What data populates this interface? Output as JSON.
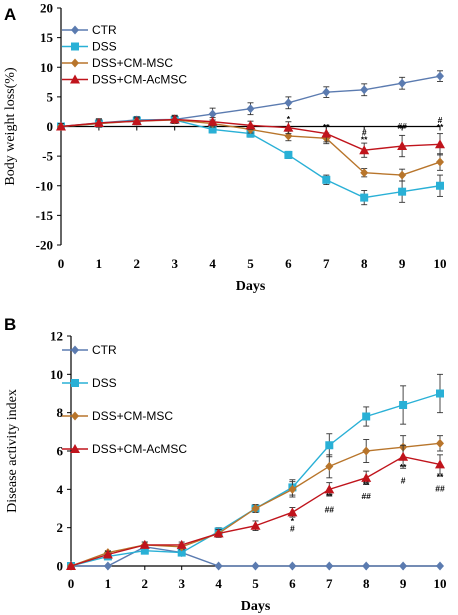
{
  "chart_data": [
    {
      "panel": "A",
      "type": "line",
      "x": [
        0,
        1,
        2,
        3,
        4,
        5,
        6,
        7,
        8,
        9,
        10
      ],
      "xlabel": "Days",
      "ylabel": "Body weight loss(%)",
      "ylim": [
        -20,
        20
      ],
      "yticks": [
        -20,
        -15,
        -10,
        -5,
        0,
        5,
        10,
        15,
        20
      ],
      "legend_position": "top-left",
      "series": [
        {
          "name": "CTR",
          "color": "#5b7bb0",
          "marker": "diamond",
          "values": [
            0,
            0.6,
            1.1,
            1.2,
            2.1,
            3.0,
            4.0,
            5.8,
            6.2,
            7.3,
            8.5
          ],
          "errors": [
            0.5,
            0.7,
            0.6,
            0.7,
            1.0,
            1.0,
            1.0,
            0.9,
            1.0,
            1.0,
            0.9
          ]
        },
        {
          "name": "DSS",
          "color": "#29b0d6",
          "marker": "square",
          "values": [
            0,
            0.5,
            1.0,
            1.1,
            -0.5,
            -1.2,
            -4.8,
            -9.0,
            -12.0,
            -11.0,
            -10.0
          ],
          "errors": [
            0.5,
            0.6,
            0.6,
            0.6,
            0.6,
            0.6,
            0.6,
            0.8,
            1.2,
            1.8,
            1.8
          ]
        },
        {
          "name": "DSS+CM-MSC",
          "color": "#b8752b",
          "marker": "diamond",
          "values": [
            0,
            0.5,
            0.9,
            1.1,
            0.5,
            -0.5,
            -1.6,
            -2.0,
            -7.8,
            -8.2,
            -6.0
          ],
          "errors": [
            0.5,
            0.6,
            0.5,
            0.6,
            0.6,
            0.6,
            0.8,
            0.9,
            0.7,
            1.0,
            1.4
          ]
        },
        {
          "name": "DSS+CM-AcMSC",
          "color": "#c0141c",
          "marker": "triangle",
          "values": [
            0,
            0.6,
            0.9,
            1.2,
            0.8,
            0.2,
            -0.2,
            -1.2,
            -4.0,
            -3.3,
            -3.0
          ],
          "errors": [
            0.5,
            0.7,
            0.6,
            0.6,
            0.7,
            0.7,
            1.0,
            1.4,
            1.2,
            1.8,
            1.8
          ]
        }
      ],
      "annotations": [
        {
          "x": 6,
          "y": 0.8,
          "text": "*"
        },
        {
          "x": 7,
          "y": -0.6,
          "text": "**"
        },
        {
          "x": 8,
          "y": -1.5,
          "text": "#"
        },
        {
          "x": 8,
          "y": -2.7,
          "text": "**"
        },
        {
          "x": 9,
          "y": -0.4,
          "text": "##"
        },
        {
          "x": 9,
          "y": -0.8,
          "text": "**"
        },
        {
          "x": 10,
          "y": 0.6,
          "text": "#"
        },
        {
          "x": 10,
          "y": -0.6,
          "text": "**"
        }
      ]
    },
    {
      "panel": "B",
      "type": "line",
      "x": [
        0,
        1,
        2,
        3,
        4,
        5,
        6,
        7,
        8,
        9,
        10
      ],
      "xlabel": "Days",
      "ylabel": "Disease activity index",
      "ylim": [
        0,
        12
      ],
      "yticks": [
        0,
        2,
        4,
        6,
        8,
        10,
        12
      ],
      "legend_position": "top-left",
      "series": [
        {
          "name": "CTR",
          "color": "#5b7bb0",
          "marker": "diamond",
          "values": [
            0,
            0,
            1.0,
            0.7,
            0,
            0,
            0,
            0,
            0,
            0,
            0
          ],
          "errors": [
            0,
            0,
            0,
            0,
            0,
            0,
            0,
            0,
            0,
            0,
            0
          ]
        },
        {
          "name": "DSS",
          "color": "#29b0d6",
          "marker": "square",
          "values": [
            0,
            0.5,
            0.8,
            0.7,
            1.8,
            3.0,
            4.1,
            6.3,
            7.8,
            8.4,
            9.0
          ],
          "errors": [
            0,
            0.1,
            0.15,
            0.15,
            0.2,
            0.2,
            0.4,
            0.6,
            0.5,
            1.0,
            1.0
          ]
        },
        {
          "name": "DSS+CM-MSC",
          "color": "#b8752b",
          "marker": "diamond",
          "values": [
            0,
            0.7,
            1.1,
            1.0,
            1.7,
            3.0,
            4.0,
            5.2,
            6.0,
            6.2,
            6.4
          ],
          "errors": [
            0,
            0.1,
            0.15,
            0.15,
            0.2,
            0.2,
            0.4,
            0.6,
            0.6,
            0.6,
            0.4
          ]
        },
        {
          "name": "DSS+CM-AcMSC",
          "color": "#c0141c",
          "marker": "triangle",
          "values": [
            0,
            0.6,
            1.1,
            1.1,
            1.7,
            2.1,
            2.8,
            4.0,
            4.6,
            5.7,
            5.3
          ],
          "errors": [
            0,
            0.15,
            0.15,
            0.15,
            0.2,
            0.25,
            0.25,
            0.35,
            0.35,
            0.6,
            0.5
          ]
        }
      ],
      "annotations": [
        {
          "x": 6,
          "y": 2.2,
          "text": "*"
        },
        {
          "x": 6,
          "y": 1.8,
          "text": "#"
        },
        {
          "x": 7,
          "y": 3.5,
          "text": "**"
        },
        {
          "x": 7,
          "y": 2.8,
          "text": "##"
        },
        {
          "x": 8,
          "y": 4.1,
          "text": "**"
        },
        {
          "x": 8,
          "y": 3.5,
          "text": "##"
        },
        {
          "x": 9,
          "y": 5.0,
          "text": "**"
        },
        {
          "x": 9,
          "y": 4.3,
          "text": "#"
        },
        {
          "x": 10,
          "y": 4.5,
          "text": "**"
        },
        {
          "x": 10,
          "y": 3.9,
          "text": "##"
        }
      ]
    }
  ]
}
